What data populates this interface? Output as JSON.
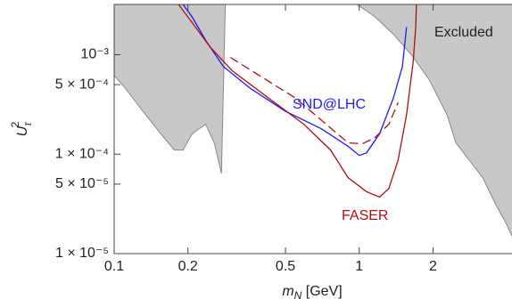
{
  "chart_data": {
    "type": "line",
    "xlabel": [
      "m",
      "N",
      " [GeV]"
    ],
    "ylabel": [
      "U",
      "τ",
      "2"
    ],
    "xscale": "log",
    "yscale": "log",
    "xlim": [
      0.1,
      4.2
    ],
    "ylim": [
      1e-05,
      0.0032
    ],
    "xticks": [
      0.1,
      0.2,
      0.5,
      1,
      2
    ],
    "yticks": [
      {
        "value": 1e-05,
        "label": "1 × 10⁻⁵"
      },
      {
        "value": 5e-05,
        "label": "5 × 10⁻⁵"
      },
      {
        "value": 0.0001,
        "label": "1 × 10⁻⁴"
      },
      {
        "value": 0.0005,
        "label": "5 × 10⁻⁴"
      },
      {
        "value": 0.001,
        "label": "10⁻³"
      }
    ],
    "series": [
      {
        "color": "#c8c8c8",
        "area": true,
        "x": [
          0.1,
          0.111,
          0.131,
          0.155,
          0.176,
          0.191,
          0.208,
          0.236,
          0.256,
          0.274,
          0.284
        ],
        "values": [
          0.00062,
          0.00046,
          0.00027,
          0.00016,
          0.00011,
          0.00011,
          0.00016,
          0.0002,
          0.00013,
          6.4e-05,
          0.0032
        ]
      },
      {
        "name": "Excluded",
        "color": "#c8c8c8",
        "area": true,
        "x": [
          0.98,
          1.16,
          1.38,
          1.63,
          1.93,
          2.28,
          2.48,
          2.81,
          3.19,
          3.61,
          3.94,
          4.2
        ],
        "values": [
          0.0032,
          0.0024,
          0.0016,
          0.001,
          0.00056,
          0.00025,
          0.00013,
          8.7e-05,
          5.8e-05,
          3.1e-05,
          2.1e-05,
          1.5e-05
        ]
      },
      {
        "name": "SND@LHC",
        "color": "#1a1aff",
        "x": [
          0.191,
          0.208,
          0.236,
          0.279,
          0.359,
          0.5,
          0.7,
          0.9,
          1.0,
          1.07,
          1.21,
          1.38,
          1.5,
          1.56
        ],
        "values": [
          0.0032,
          0.0024,
          0.0014,
          0.00076,
          0.00046,
          0.00027,
          0.00018,
          0.00012,
          9.7e-05,
          0.000103,
          0.00016,
          0.00037,
          0.00076,
          0.0019
        ]
      },
      {
        "name": "FASER",
        "color": "#b01010",
        "x": [
          0.183,
          0.208,
          0.246,
          0.303,
          0.424,
          0.594,
          0.764,
          0.9,
          1.07,
          1.21,
          1.32,
          1.44,
          1.56,
          1.66,
          1.7,
          1.71
        ],
        "values": [
          0.0032,
          0.0021,
          0.0012,
          0.00069,
          0.00037,
          0.0002,
          0.00011,
          5.8e-05,
          4.2e-05,
          3.7e-05,
          4.5e-05,
          8.7e-05,
          0.00025,
          0.00085,
          0.0019,
          0.0032
        ]
      },
      {
        "color": "#b01010",
        "dash": true,
        "x": [
          0.298,
          0.39,
          0.546,
          0.733,
          0.9,
          1.03,
          1.16,
          1.32,
          1.44
        ],
        "values": [
          0.00094,
          0.00062,
          0.00037,
          0.0002,
          0.00013,
          0.000127,
          0.000147,
          0.0002,
          0.00033
        ]
      }
    ]
  }
}
